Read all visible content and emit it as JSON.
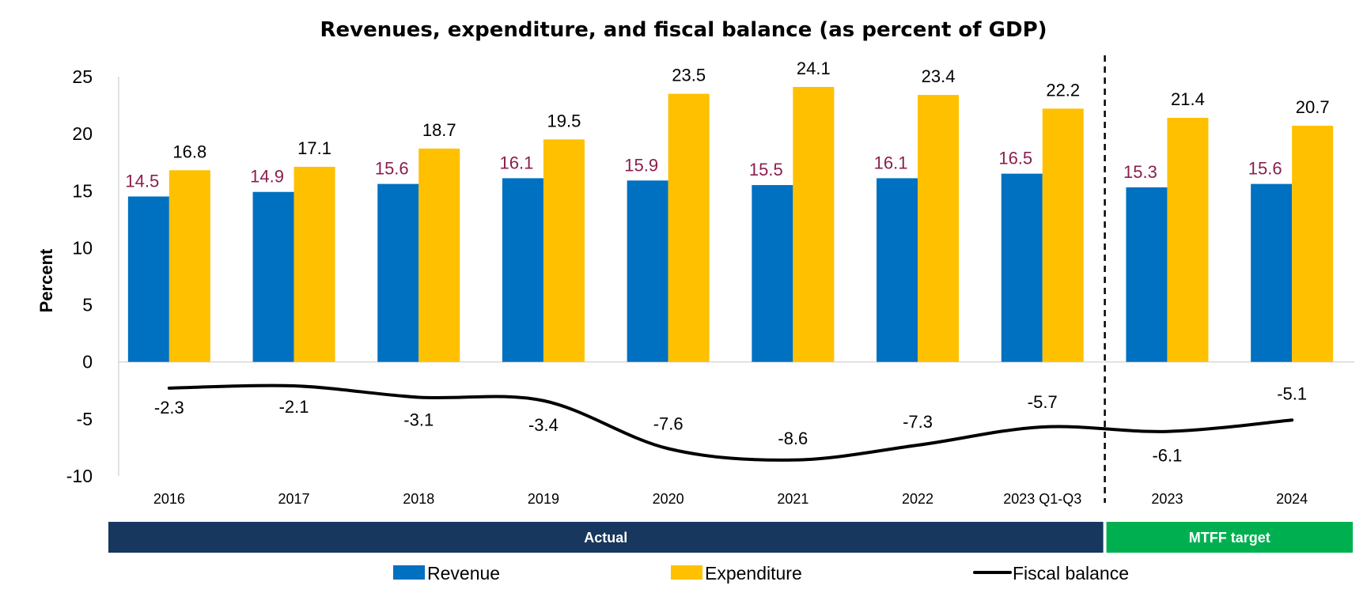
{
  "chart_data": {
    "type": "bar",
    "title": "Revenues, expenditure, and fiscal balance (as percent of GDP)",
    "xlabel": "",
    "ylabel": "Percent",
    "ylim": [
      -10,
      25
    ],
    "yticks": [
      25,
      20,
      15,
      10,
      5,
      0,
      -5,
      -10
    ],
    "grid": false,
    "categories": [
      "2016",
      "2017",
      "2018",
      "2019",
      "2020",
      "2021",
      "2022",
      "2023 Q1-Q3",
      "2023",
      "2024"
    ],
    "series": [
      {
        "name": "Revenue",
        "kind": "bar",
        "color": "#0070C0",
        "label_color": "#8B1E4E",
        "values": [
          14.5,
          14.9,
          15.6,
          16.1,
          15.9,
          15.5,
          16.1,
          16.5,
          15.3,
          15.6
        ],
        "labels": [
          "14.5",
          "14.9",
          "15.6",
          "16.1",
          "15.9",
          "15.5",
          "16.1",
          "16.5",
          "15.3",
          "15.6"
        ]
      },
      {
        "name": "Expenditure",
        "kind": "bar",
        "color": "#FFC000",
        "label_color": "#000000",
        "values": [
          16.8,
          17.1,
          18.7,
          19.5,
          23.5,
          24.1,
          23.4,
          22.2,
          21.4,
          20.7
        ],
        "labels": [
          "16.8",
          "17.1",
          "18.7",
          "19.5",
          "23.5",
          "24.1",
          "23.4",
          "22.2",
          "21.4",
          "20.7"
        ]
      },
      {
        "name": "Fiscal balance",
        "kind": "line",
        "color": "#000000",
        "label_color": "#000000",
        "values": [
          -2.3,
          -2.1,
          -3.1,
          -3.4,
          -7.6,
          -8.6,
          -7.3,
          -5.7,
          -6.1,
          -5.1
        ],
        "labels": [
          "-2.3",
          "-2.1",
          "-3.1",
          "-3.4",
          "-7.6",
          "-8.6",
          "-7.3",
          "-5.7",
          "-6.1",
          "-5.1"
        ]
      }
    ],
    "groups": [
      {
        "label": "Actual",
        "from": 0,
        "to": 7,
        "color": "#17375E"
      },
      {
        "label": "MTFF target",
        "from": 8,
        "to": 9,
        "color": "#00B050"
      }
    ],
    "divider_after_index": 7,
    "legend_position": "bottom"
  }
}
